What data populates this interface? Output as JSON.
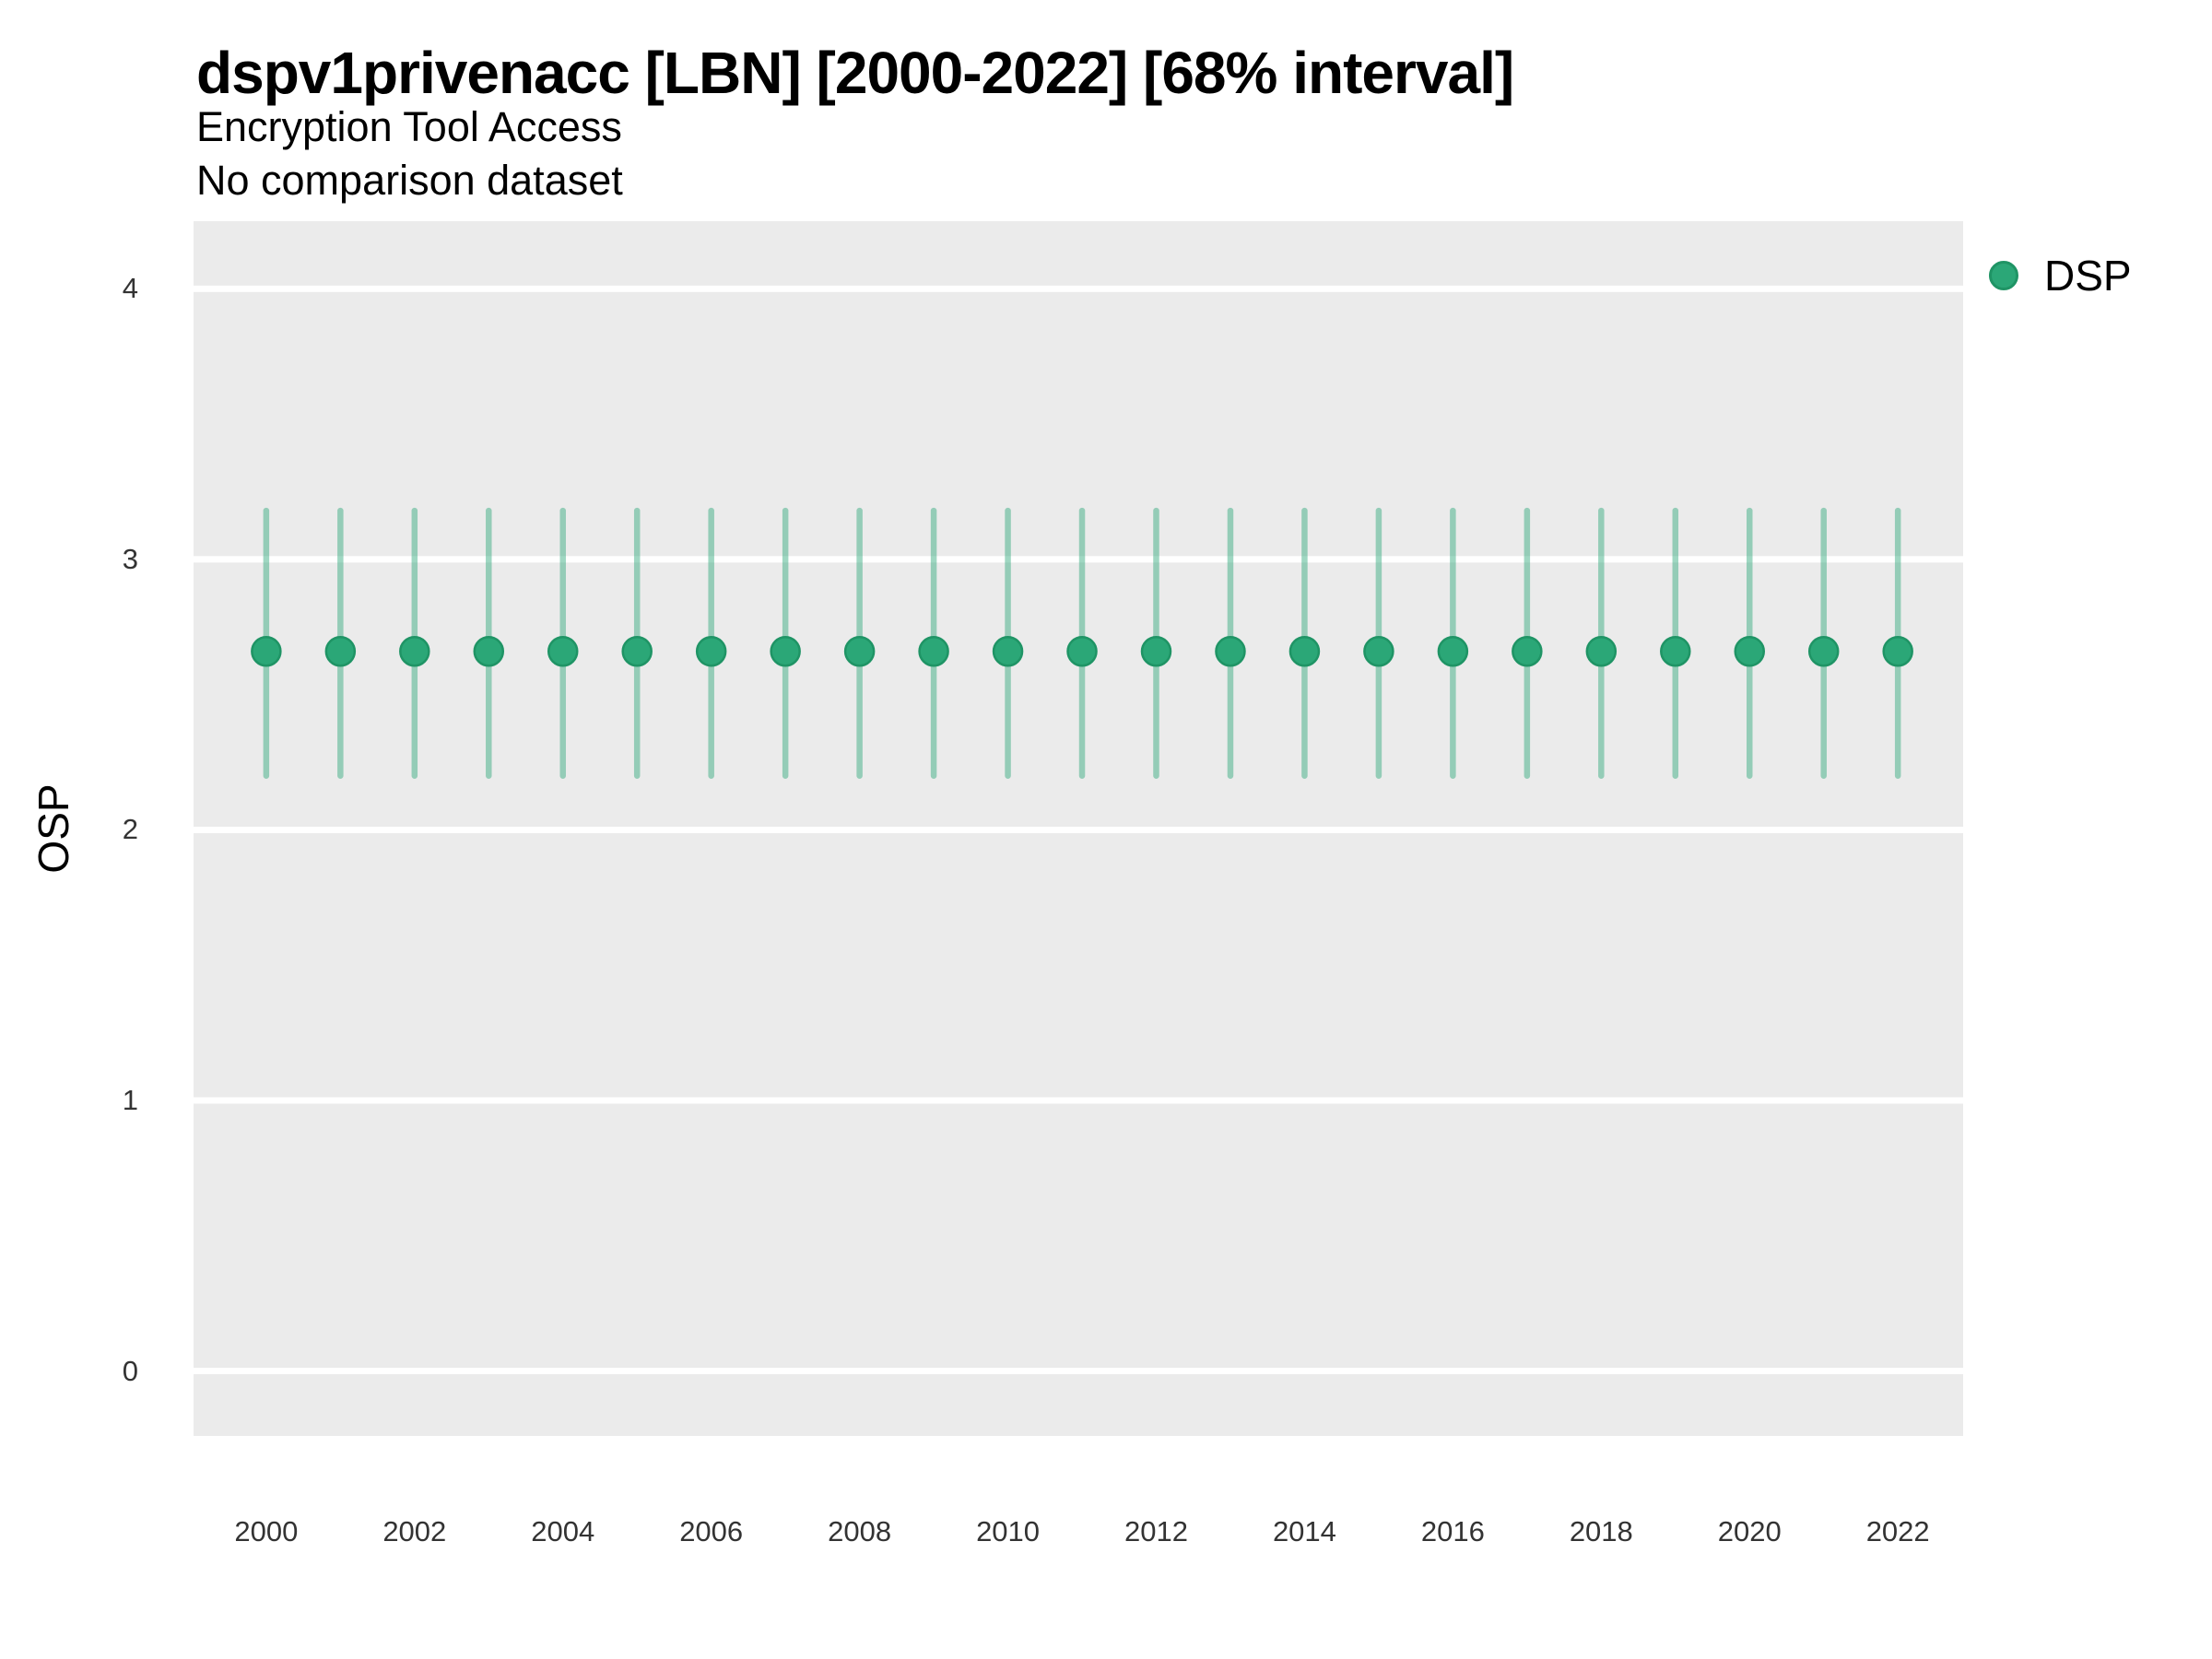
{
  "header": {
    "title": "dspv1privenacc [LBN] [2000-2022] [68% interval]",
    "subtitle": "Encryption Tool Access",
    "note": "No comparison dataset"
  },
  "legend": {
    "position": "right",
    "items": [
      {
        "label": "DSP",
        "marker": "circle-icon"
      }
    ]
  },
  "chart_data": {
    "type": "scatter",
    "title": "dspv1privenacc [LBN] [2000-2022] [68% interval]",
    "subtitle": "Encryption Tool Access",
    "annotation": "No comparison dataset",
    "xlabel": "",
    "ylabel": "OSP",
    "legend_position": "right",
    "grid": "horizontal major gridlines only, white on gray panel",
    "interval_label": "68% interval",
    "x": [
      2000,
      2001,
      2002,
      2003,
      2004,
      2005,
      2006,
      2007,
      2008,
      2009,
      2010,
      2011,
      2012,
      2013,
      2014,
      2015,
      2016,
      2017,
      2018,
      2019,
      2020,
      2021,
      2022
    ],
    "series": [
      {
        "name": "DSP",
        "values": [
          2.66,
          2.66,
          2.66,
          2.66,
          2.66,
          2.66,
          2.66,
          2.66,
          2.66,
          2.66,
          2.66,
          2.66,
          2.66,
          2.66,
          2.66,
          2.66,
          2.66,
          2.66,
          2.66,
          2.66,
          2.66,
          2.66,
          2.66
        ],
        "lower": [
          2.2,
          2.2,
          2.2,
          2.2,
          2.2,
          2.2,
          2.2,
          2.2,
          2.2,
          2.2,
          2.2,
          2.2,
          2.2,
          2.2,
          2.2,
          2.2,
          2.2,
          2.2,
          2.2,
          2.2,
          2.2,
          2.2,
          2.2
        ],
        "upper": [
          3.18,
          3.18,
          3.18,
          3.18,
          3.18,
          3.18,
          3.18,
          3.18,
          3.18,
          3.18,
          3.18,
          3.18,
          3.18,
          3.18,
          3.18,
          3.18,
          3.18,
          3.18,
          3.18,
          3.18,
          3.18,
          3.18,
          3.18
        ]
      }
    ],
    "xticks": [
      2000,
      2002,
      2004,
      2006,
      2008,
      2010,
      2012,
      2014,
      2016,
      2018,
      2020,
      2022
    ],
    "yticks": [
      0,
      1,
      2,
      3,
      4
    ],
    "xlim": [
      1999.02,
      2022.88
    ],
    "ylim": [
      -0.24,
      4.25
    ],
    "colors": {
      "point": "#2ba777",
      "point_edge": "#1f9465",
      "interval": "rgba(43,167,119,0.45)",
      "panel_bg": "#ebebeb",
      "grid": "#ffffff",
      "tick_text": "#333333",
      "title_text": "#000000"
    }
  }
}
